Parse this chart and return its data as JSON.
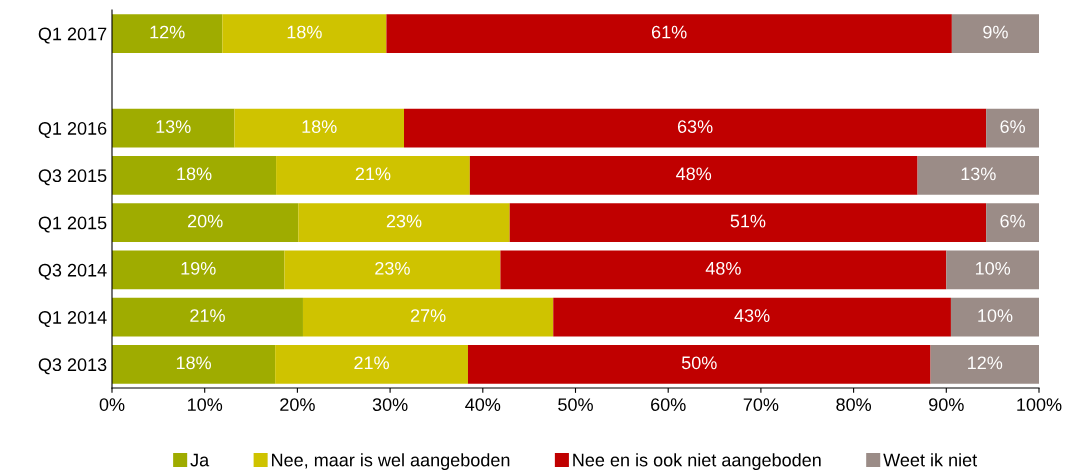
{
  "chart_data": {
    "type": "bar",
    "orientation": "horizontal",
    "stacked": true,
    "categories": [
      "Q1 2017",
      null,
      "Q1 2016",
      "Q3 2015",
      "Q1 2015",
      "Q3 2014",
      "Q1 2014",
      "Q3 2013"
    ],
    "series": [
      {
        "name": "Ja",
        "color": "#9fac00",
        "values": [
          11.9,
          null,
          13.2,
          17.7,
          20.1,
          18.6,
          20.6,
          17.6
        ],
        "value_labels": [
          "12%",
          null,
          "13%",
          "18%",
          "20%",
          "19%",
          "21%",
          "18%"
        ]
      },
      {
        "name": "Nee, maar is wel aangeboden",
        "color": "#cfc300",
        "values": [
          17.7,
          null,
          18.3,
          20.9,
          22.8,
          23.3,
          27.0,
          20.8
        ],
        "value_labels": [
          "18%",
          null,
          "18%",
          "21%",
          "23%",
          "23%",
          "27%",
          "21%"
        ]
      },
      {
        "name": "Nee en is ook niet aangeboden",
        "color": "#c00000",
        "values": [
          61.0,
          null,
          62.8,
          48.3,
          51.4,
          48.1,
          42.9,
          49.9
        ],
        "value_labels": [
          "61%",
          null,
          "63%",
          "48%",
          "51%",
          "48%",
          "43%",
          "50%"
        ]
      },
      {
        "name": "Weet ik niet",
        "color": "#9b8c87",
        "values": [
          9.4,
          null,
          5.7,
          13.1,
          5.7,
          10.0,
          9.5,
          11.7
        ],
        "value_labels": [
          "9%",
          null,
          "6%",
          "13%",
          "6%",
          "10%",
          "10%",
          "12%"
        ]
      }
    ],
    "xlim": [
      0,
      100
    ],
    "xticks": [
      {
        "value": 0,
        "label": "0%"
      },
      {
        "value": 10,
        "label": "10%"
      },
      {
        "value": 20,
        "label": "20%"
      },
      {
        "value": 30,
        "label": "30%"
      },
      {
        "value": 40,
        "label": "40%"
      },
      {
        "value": 50,
        "label": "50%"
      },
      {
        "value": 60,
        "label": "60%"
      },
      {
        "value": 70,
        "label": "70%"
      },
      {
        "value": 80,
        "label": "80%"
      },
      {
        "value": 90,
        "label": "90%"
      },
      {
        "value": 100,
        "label": "100%"
      }
    ],
    "legend": "bottom"
  }
}
